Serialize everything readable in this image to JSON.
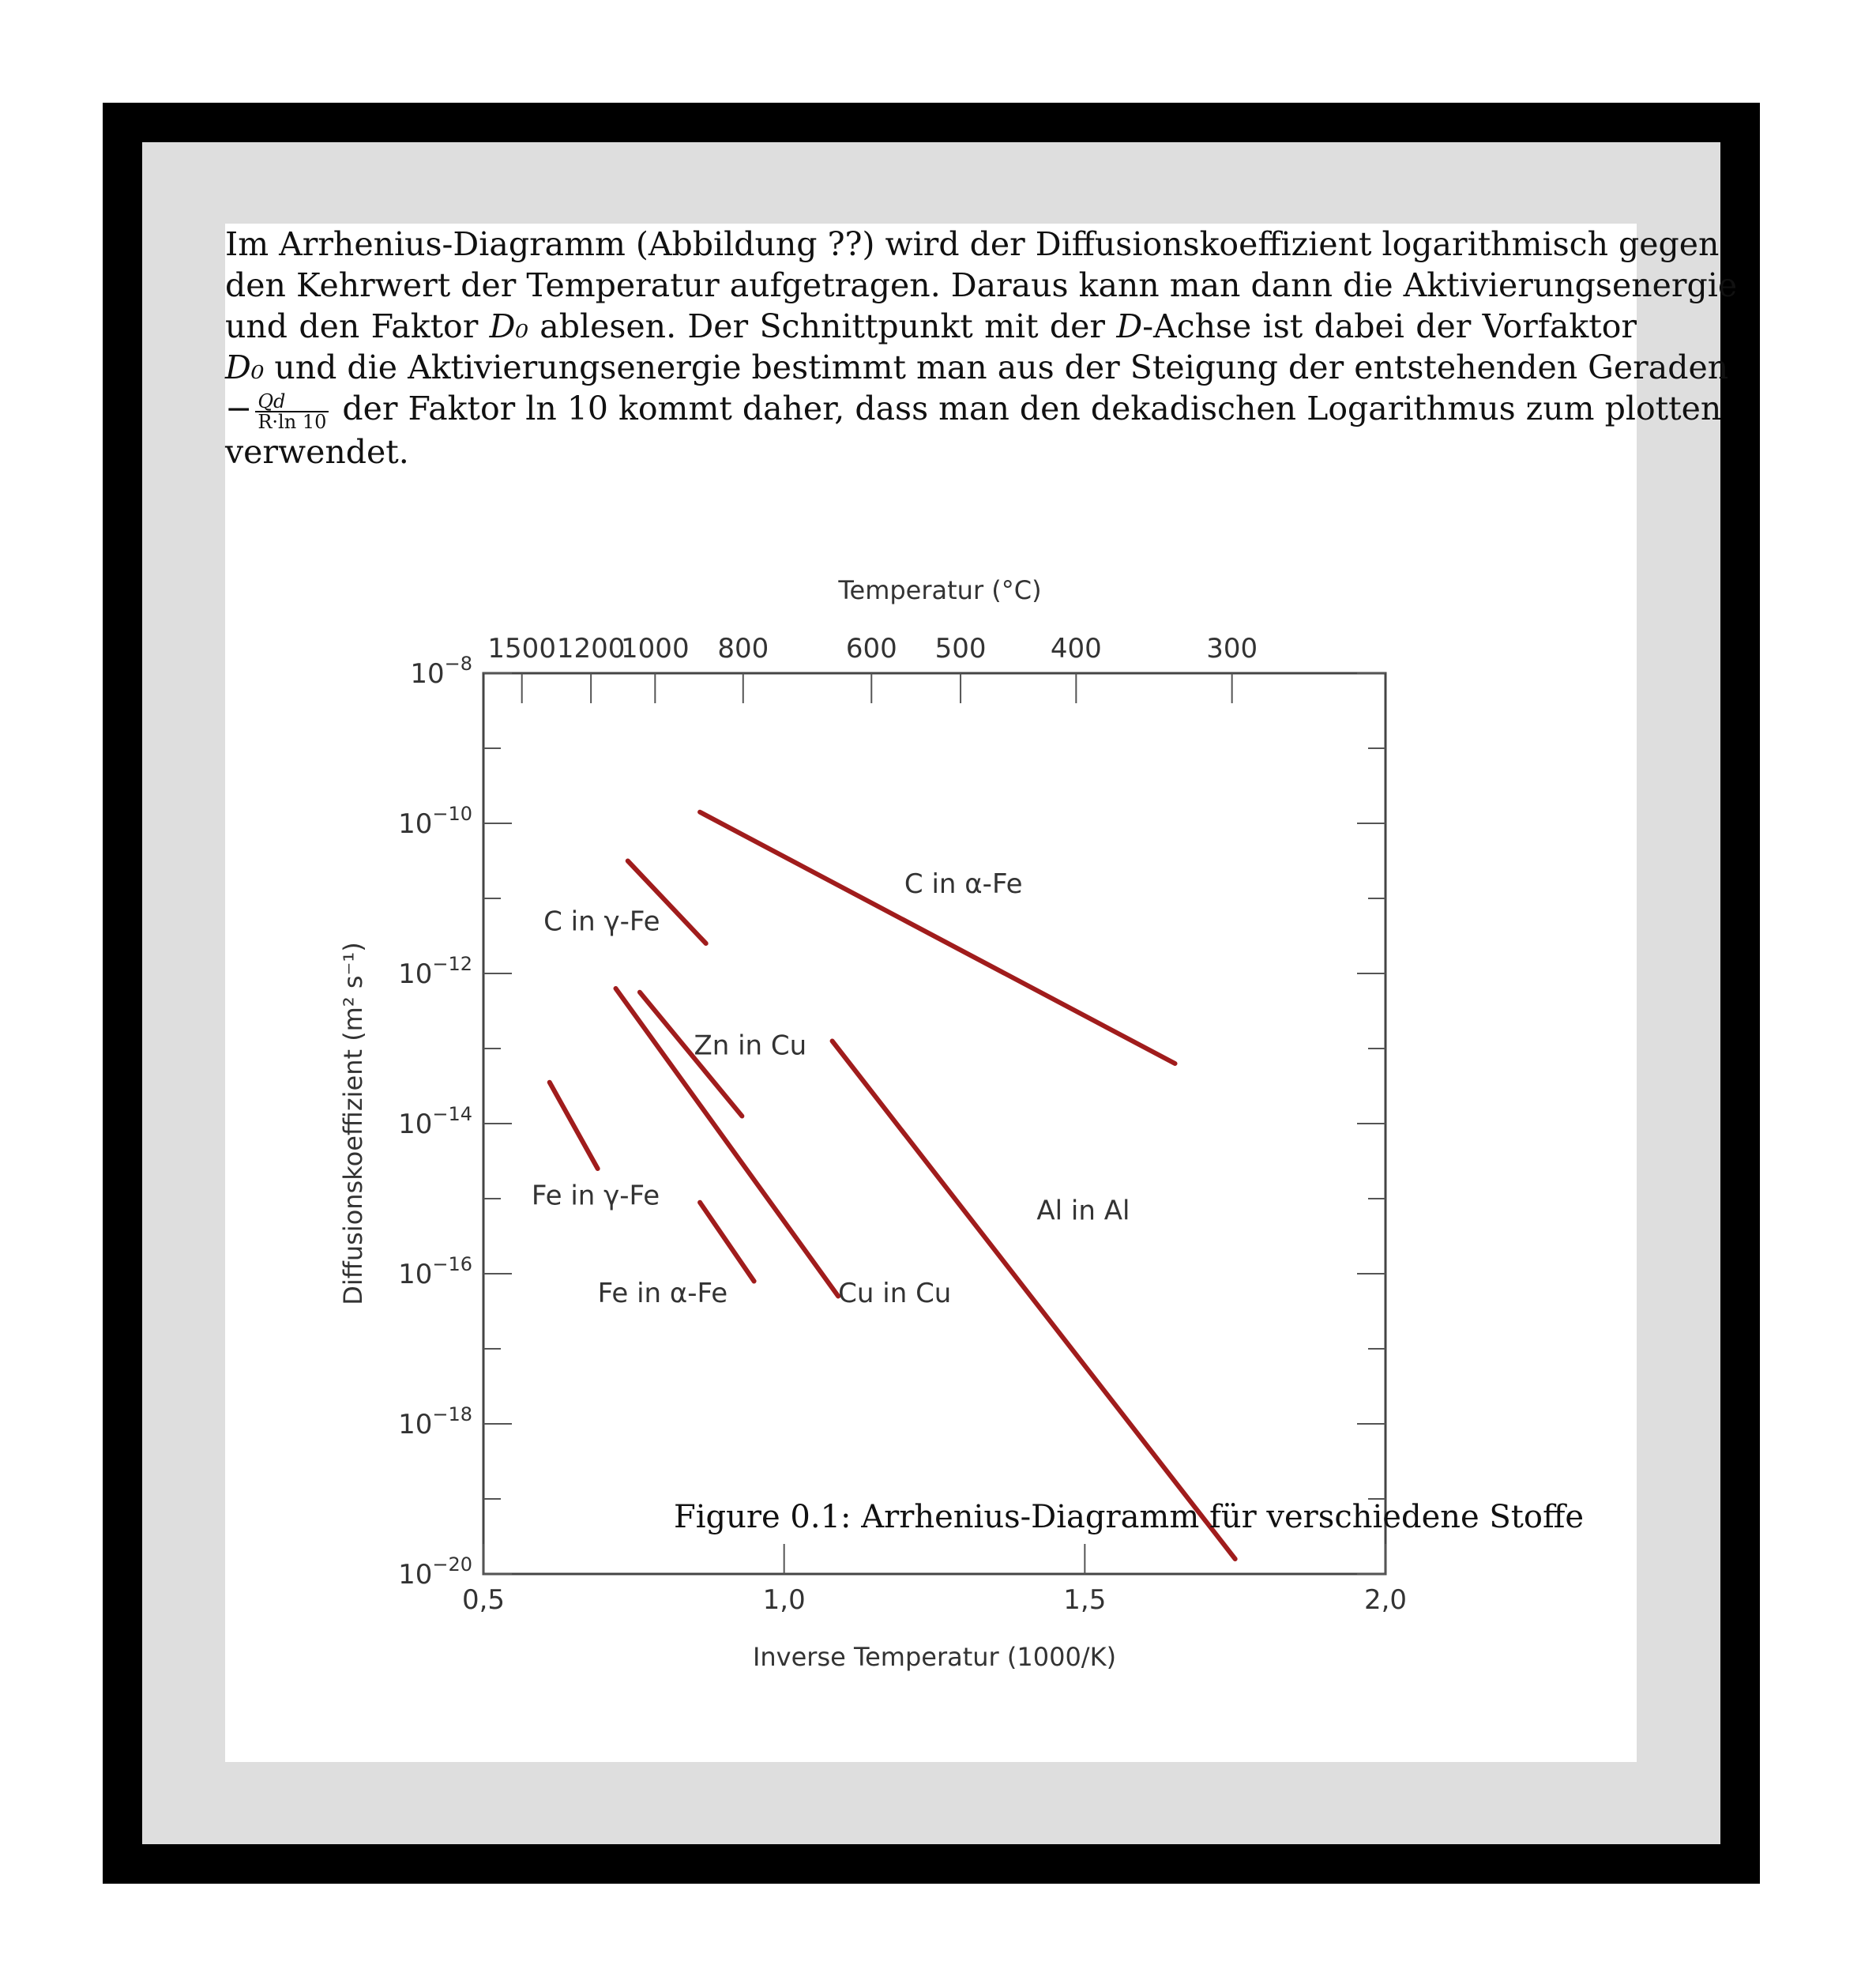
{
  "document": {
    "paragraph": {
      "l1": "Im Arrhenius-Diagramm (Abbildung ??) wird der Diffusionskoeffizient logarithmisch gegen",
      "l2": "den Kehrwert der Temperatur aufgetragen. Daraus kann man dann die Aktivierungsenergie",
      "l3a": "und den Faktor ",
      "l3b": " ablesen. Der Schnittpunkt mit der ",
      "l3c": "-Achse ist dabei der Vorfaktor",
      "l4": " und die Aktivierungsenergie bestimmt man aus der Steigung der entstehenden Geraden",
      "l5": " der Faktor ln 10 kommt daher, dass man den dekadischen Logarithmus zum plotten",
      "l6": "verwendet.",
      "sym_D0": "D₀",
      "sym_D": "D",
      "minus": "−",
      "frac_num": "Qd",
      "frac_den": "R·ln 10"
    },
    "caption": "Figure 0.1: Arrhenius-Diagramm für verschiedene Stoffe"
  },
  "chart_data": {
    "type": "line",
    "title": "",
    "xlabel": "Inverse Temperatur (1000/K)",
    "ylabel": "Diffusionskoeffizient (m² s⁻¹)",
    "top_axis_label": "Temperatur (°C)",
    "xlim": [
      0.5,
      2.0
    ],
    "ylim_log10": [
      -20,
      -8
    ],
    "y_scale": "log",
    "x_ticks": [
      0.5,
      1.0,
      1.5,
      2.0
    ],
    "x_tick_labels": [
      "0,5",
      "1,0",
      "1,5",
      "2,0"
    ],
    "y_ticks_log10": [
      -8,
      -10,
      -12,
      -14,
      -16,
      -18,
      -20
    ],
    "y_tick_labels_base": "10",
    "y_tick_labels_exp": [
      "−8",
      "−10",
      "−12",
      "−14",
      "−16",
      "−18",
      "−20"
    ],
    "top_ticks_celsius": [
      1500,
      1200,
      1000,
      800,
      600,
      500,
      400,
      300
    ],
    "top_tick_labels": [
      "1500",
      "1200",
      "1000",
      "800",
      "600",
      "500",
      "400",
      "300"
    ],
    "grid": false,
    "line_color": "#a01c1c",
    "series": [
      {
        "name": "C in γ-Fe",
        "x": [
          0.74,
          0.87
        ],
        "y_log10": [
          -10.5,
          -11.6
        ],
        "label_at": [
          0.6,
          -11.3
        ]
      },
      {
        "name": "C in α-Fe",
        "x": [
          0.86,
          1.65
        ],
        "y_log10": [
          -9.85,
          -13.2
        ],
        "label_at": [
          1.2,
          -10.8
        ]
      },
      {
        "name": "Zn in Cu",
        "x": [
          0.76,
          0.93
        ],
        "y_log10": [
          -12.25,
          -13.9
        ],
        "label_at": [
          0.85,
          -12.95
        ]
      },
      {
        "name": "Cu in Cu",
        "x": [
          0.72,
          1.09
        ],
        "y_log10": [
          -12.2,
          -16.3
        ],
        "label_at": [
          1.09,
          -16.25
        ]
      },
      {
        "name": "Fe in γ-Fe",
        "x": [
          0.61,
          0.69
        ],
        "y_log10": [
          -13.45,
          -14.6
        ],
        "label_at": [
          0.58,
          -14.95
        ]
      },
      {
        "name": "Fe in α-Fe",
        "x": [
          0.86,
          0.95
        ],
        "y_log10": [
          -15.05,
          -16.1
        ],
        "label_at": [
          0.69,
          -16.25
        ]
      },
      {
        "name": "Al in Al",
        "x": [
          1.08,
          1.75
        ],
        "y_log10": [
          -12.9,
          -19.8
        ],
        "label_at": [
          1.42,
          -15.15
        ]
      }
    ]
  }
}
